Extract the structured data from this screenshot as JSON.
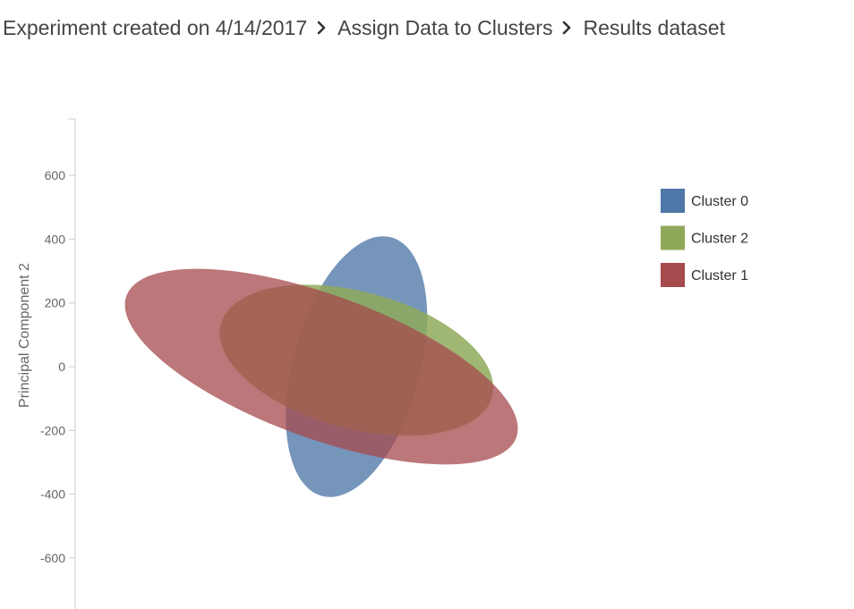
{
  "breadcrumb": {
    "items": [
      {
        "label": "Experiment created on 4/14/2017"
      },
      {
        "label": "Assign Data to Clusters"
      },
      {
        "label": "Results dataset"
      }
    ],
    "separator_icon": "chevron-right-icon"
  },
  "chart_data": {
    "type": "cluster-ellipses",
    "title": "",
    "xlabel": "",
    "ylabel": "Principal Component 2",
    "ylim": [
      -760,
      770
    ],
    "xlim": [
      -230,
      1470
    ],
    "yticks": [
      600,
      400,
      200,
      0,
      -200,
      -400,
      -600
    ],
    "ytick_labels": [
      "600",
      "400",
      "200",
      "0",
      "-200",
      "-400",
      "-600"
    ],
    "grid": false,
    "legend_position": "right",
    "series": [
      {
        "name": "Cluster 0",
        "color": "#4f77a8",
        "cx": 110,
        "cy": 0,
        "rx": 200,
        "ry": 420,
        "rotation_deg": 15,
        "opacity": 0.78
      },
      {
        "name": "Cluster 2",
        "color": "#8fa95a",
        "cx": 110,
        "cy": 20,
        "rx": 440,
        "ry": 215,
        "rotation_deg": 15,
        "opacity": 0.85
      },
      {
        "name": "Cluster 1",
        "color": "#a64a4e",
        "cx": 0,
        "cy": 0,
        "rx": 650,
        "ry": 225,
        "rotation_deg": 20,
        "opacity": 0.75
      }
    ],
    "legend_order": [
      "Cluster 0",
      "Cluster 2",
      "Cluster 1"
    ]
  }
}
